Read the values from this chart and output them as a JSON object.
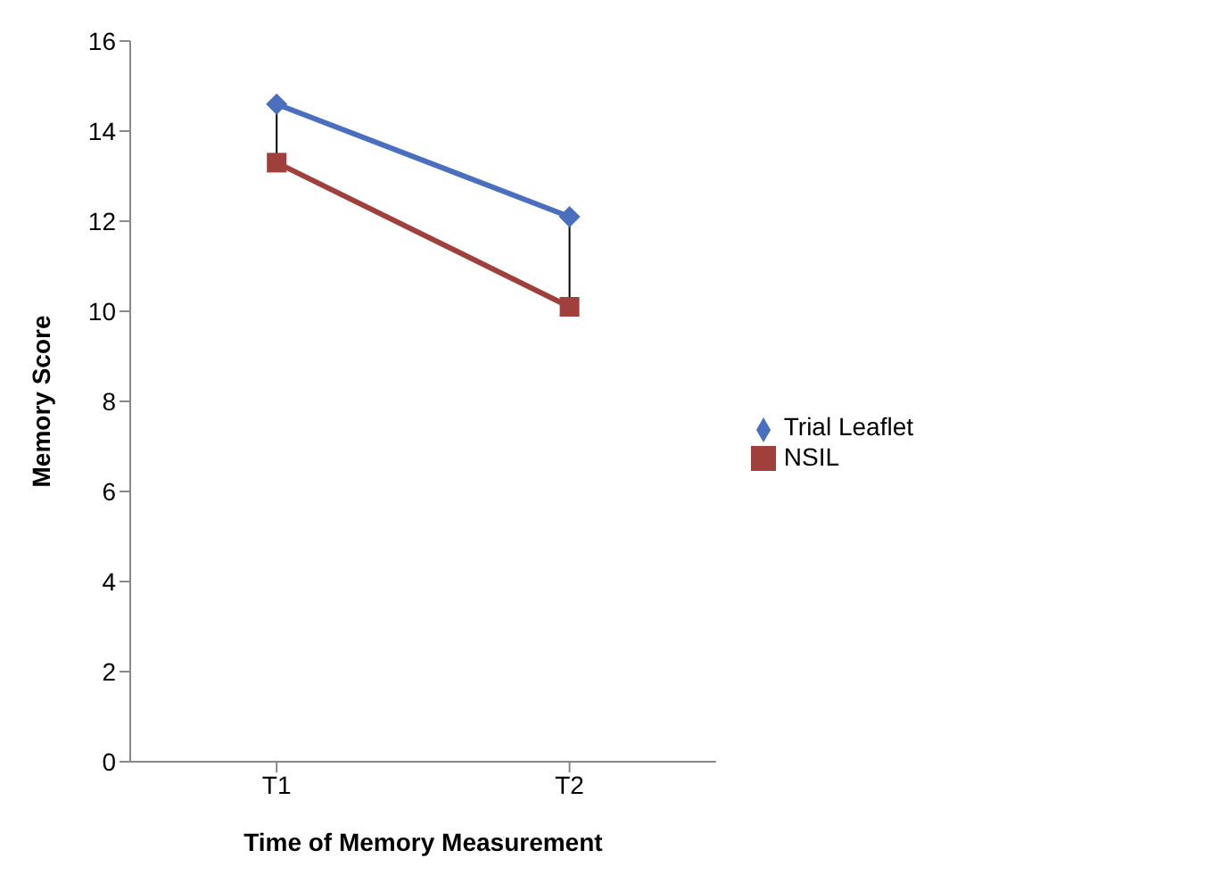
{
  "chart_data": {
    "type": "line",
    "xlabel": "Time of Memory Measurement",
    "ylabel": "Memory Score",
    "categories": [
      "T1",
      "T2"
    ],
    "series": [
      {
        "name": "Trial Leaflet",
        "color": "#4a6fbf",
        "values": [
          14.6,
          12.1
        ],
        "marker": "diamond"
      },
      {
        "name": "NSIL",
        "color": "#a0403c",
        "values": [
          13.3,
          10.1
        ],
        "marker": "square"
      }
    ],
    "ylim": [
      0,
      16
    ],
    "yticks": [
      0,
      2,
      4,
      6,
      8,
      10,
      12,
      14,
      16
    ],
    "grid": false,
    "legend": "right"
  }
}
